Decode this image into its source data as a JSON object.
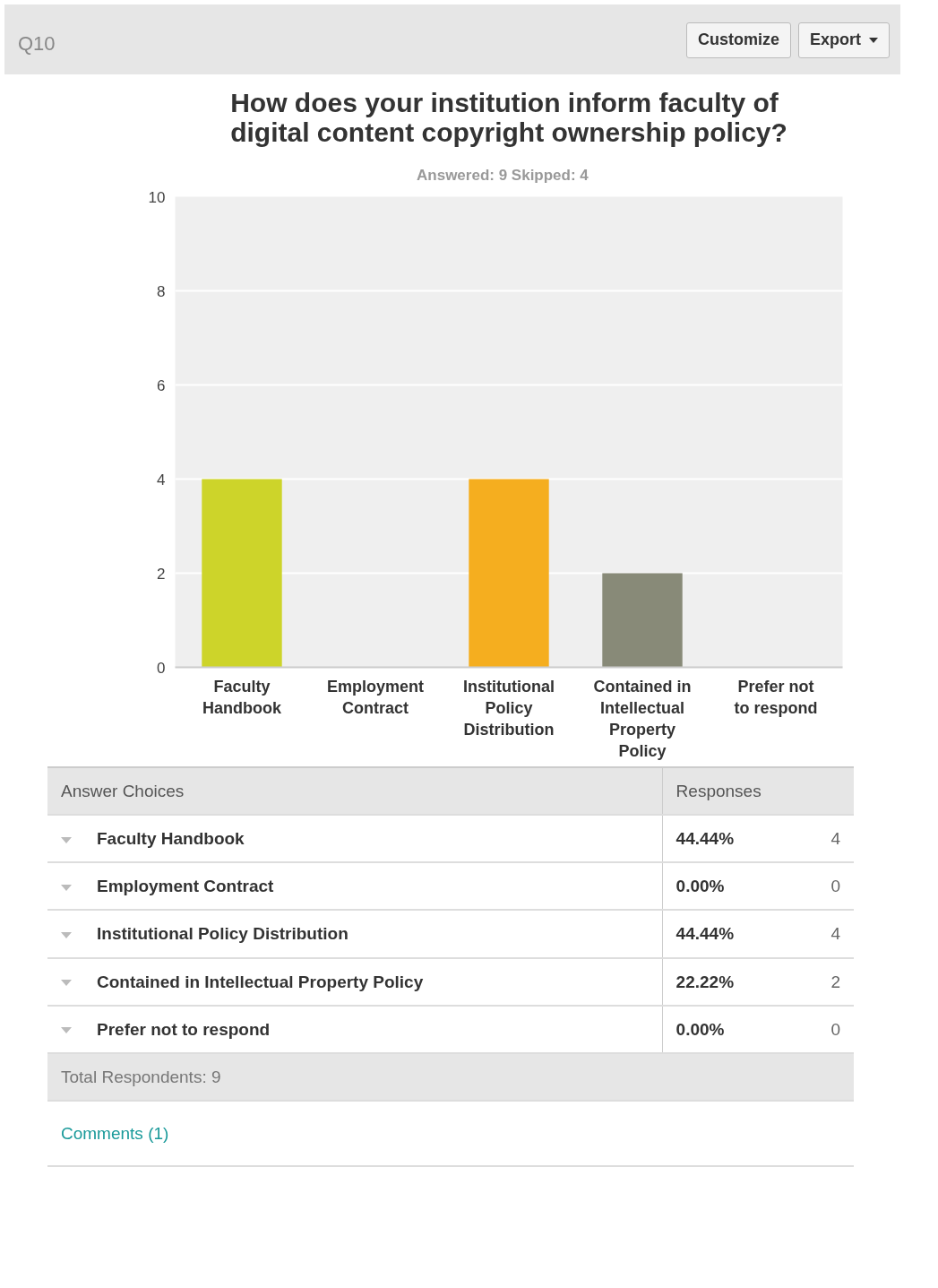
{
  "chart_data": {
    "type": "bar",
    "title": "How does your institution inform faculty of digital content copyright ownership policy?",
    "subtitle": "Answered: 9    Skipped: 4",
    "categories": [
      "Faculty Handbook",
      "Employment Contract",
      "Institutional Policy Distribution",
      "Contained in Intellectual Property Policy",
      "Prefer not to respond"
    ],
    "values": [
      4,
      0,
      4,
      2,
      0
    ],
    "colors": [
      "#cdd42a",
      "#5b9bd5",
      "#f5ae1f",
      "#888a78",
      "#a3c46b"
    ],
    "ylim": [
      0,
      10
    ],
    "yticks": [
      0,
      2,
      4,
      6,
      8,
      10
    ],
    "grid": "y",
    "annotations": [
      "Q10",
      "Customize",
      "Export",
      "Answer Choices",
      "Responses",
      "44.44%",
      "0.00%",
      "44.44%",
      "22.22%",
      "0.00%",
      "4",
      "0",
      "4",
      "2",
      "0",
      "Total Respondents: 9",
      "Comments (1)"
    ]
  }
}
